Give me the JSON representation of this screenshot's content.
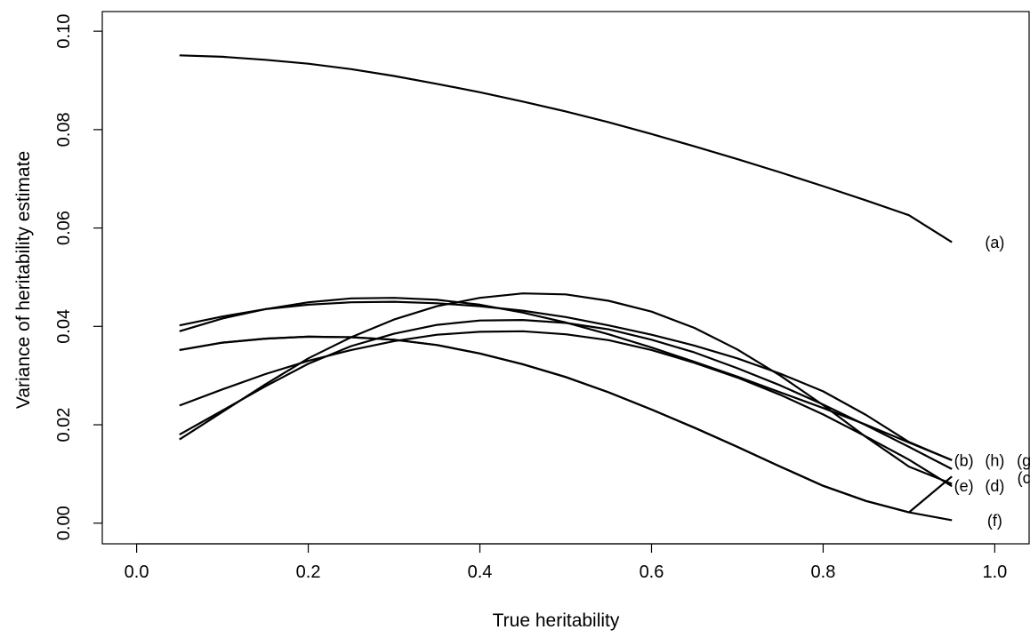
{
  "chart_data": {
    "type": "line",
    "xlabel": "True heritability",
    "ylabel": "Variance of heritability estimate",
    "xlim": [
      -0.04,
      1.04
    ],
    "ylim": [
      -0.0042,
      0.104
    ],
    "x_ticks": [
      0.0,
      0.2,
      0.4,
      0.6,
      0.8,
      1.0
    ],
    "x_tick_labels": [
      "0.0",
      "0.2",
      "0.4",
      "0.6",
      "0.8",
      "1.0"
    ],
    "y_ticks": [
      0.0,
      0.02,
      0.04,
      0.06,
      0.08,
      0.1
    ],
    "y_tick_labels": [
      "0.00",
      "0.02",
      "0.04",
      "0.06",
      "0.08",
      "0.10"
    ],
    "grid": false,
    "legend": "none",
    "x": [
      0.05,
      0.1,
      0.15,
      0.2,
      0.25,
      0.3,
      0.35,
      0.4,
      0.45,
      0.5,
      0.55,
      0.6,
      0.65,
      0.7,
      0.75,
      0.8,
      0.85,
      0.9,
      0.95
    ],
    "series": [
      {
        "name": "(a)",
        "label_xy": [
          1.0,
          0.057
        ],
        "values": [
          0.0951,
          0.0948,
          0.0942,
          0.0934,
          0.0923,
          0.0909,
          0.0893,
          0.0876,
          0.0857,
          0.0837,
          0.0815,
          0.0791,
          0.0766,
          0.074,
          0.0713,
          0.0685,
          0.0656,
          0.0626,
          0.0571
        ]
      },
      {
        "name": "(b)",
        "label_xy": [
          0.964,
          0.0127
        ],
        "values": [
          0.0402,
          0.042,
          0.0435,
          0.0444,
          0.0449,
          0.045,
          0.0447,
          0.0441,
          0.0432,
          0.0419,
          0.0402,
          0.0383,
          0.0361,
          0.0335,
          0.0304,
          0.0268,
          0.022,
          0.0165,
          0.0128
        ]
      },
      {
        "name": "(h)",
        "label_xy": [
          1.0,
          0.0127
        ],
        "values": [
          0.039,
          0.0416,
          0.0435,
          0.0449,
          0.0457,
          0.0458,
          0.0454,
          0.0444,
          0.0428,
          0.0408,
          0.0384,
          0.0357,
          0.0328,
          0.0298,
          0.0266,
          0.0234,
          0.02,
          0.0164,
          0.0128
        ]
      },
      {
        "name": "(g)",
        "label_xy": [
          1.037,
          0.0127
        ],
        "values": [
          0.018,
          0.0229,
          0.0278,
          0.0324,
          0.036,
          0.0385,
          0.0403,
          0.0412,
          0.0413,
          0.0407,
          0.0394,
          0.0373,
          0.0347,
          0.0315,
          0.028,
          0.0241,
          0.0199,
          0.0155,
          0.011
        ]
      },
      {
        "name": "(c)",
        "label_xy": [
          1.037,
          0.0092
        ],
        "values": [
          0.017,
          0.0226,
          0.0282,
          0.0335,
          0.0378,
          0.0414,
          0.0441,
          0.0458,
          0.0467,
          0.0465,
          0.0452,
          0.043,
          0.0397,
          0.0353,
          0.03,
          0.024,
          0.0175,
          0.0115,
          0.008
        ]
      },
      {
        "name": "(e)",
        "label_xy": [
          0.964,
          0.0075
        ],
        "values": [
          0.0239,
          0.0272,
          0.0303,
          0.033,
          0.0352,
          0.037,
          0.0383,
          0.0389,
          0.039,
          0.0384,
          0.0372,
          0.0352,
          0.0326,
          0.0296,
          0.0261,
          0.0221,
          0.0176,
          0.0129,
          0.0075
        ]
      },
      {
        "name": "(d)",
        "label_xy": [
          1.0,
          0.0075
        ],
        "values": [
          0.0352,
          0.0367,
          0.0375,
          0.0379,
          0.0378,
          0.0373,
          0.0362,
          0.0345,
          0.0323,
          0.0297,
          0.0266,
          0.0231,
          0.0194,
          0.0155,
          0.0115,
          0.0076,
          0.0045,
          0.0022,
          0.0095
        ]
      },
      {
        "name": "(f)",
        "label_xy": [
          1.0,
          0.0005
        ],
        "values": [
          0.0352,
          0.0367,
          0.0375,
          0.0379,
          0.0378,
          0.0373,
          0.0362,
          0.0345,
          0.0323,
          0.0297,
          0.0266,
          0.0231,
          0.0194,
          0.0155,
          0.0115,
          0.0076,
          0.0045,
          0.0022,
          0.0006
        ]
      }
    ]
  }
}
